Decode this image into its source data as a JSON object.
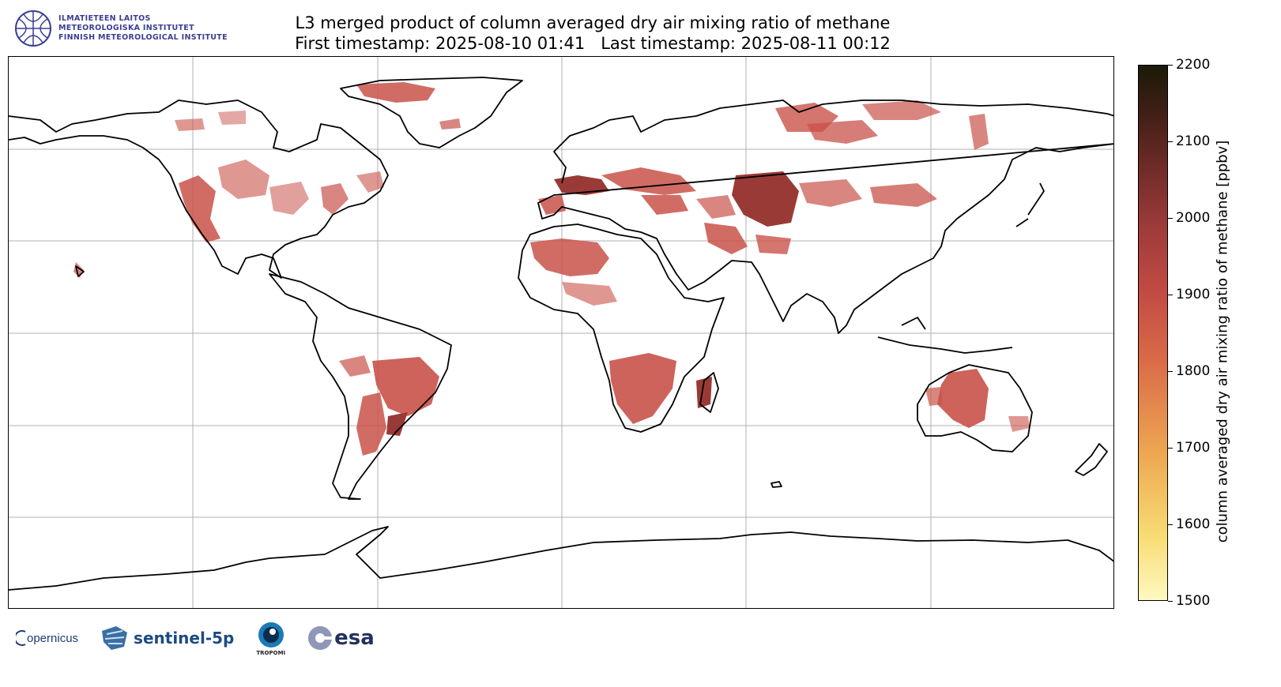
{
  "header": {
    "institute_lines": [
      "ILMATIETEEN LAITOS",
      "METEOROLOGISKA INSTITUTET",
      "FINNISH METEOROLOGICAL INSTITUTE"
    ],
    "title_line1": "L3 merged product of column averaged dry air mixing ratio of methane",
    "title_line2": "First timestamp: 2025-08-10 01:41   Last timestamp: 2025-08-11 00:12"
  },
  "colorbar": {
    "label": "column averaged dry air mixing ratio of methane [ppbv]",
    "min": 1500,
    "max": 2200,
    "ticks": [
      "1500",
      "1600",
      "1700",
      "1800",
      "1900",
      "2000",
      "2100",
      "2200"
    ],
    "colormap": [
      "#fff8c0",
      "#f7dc74",
      "#eda550",
      "#d96a48",
      "#c14a43",
      "#9c3b3a",
      "#6a2a26",
      "#3c1e14",
      "#1c1a08"
    ]
  },
  "map": {
    "projection": "equirectangular",
    "gridlines": true,
    "grid_color": "#b0b0b0",
    "data_color": "#c9524a",
    "high_color": "#9a3a36"
  },
  "footer": {
    "copernicus": "opernicus",
    "sentinel": "sentinel-5p",
    "tropomi": "TROPOMI",
    "esa": "esa"
  }
}
